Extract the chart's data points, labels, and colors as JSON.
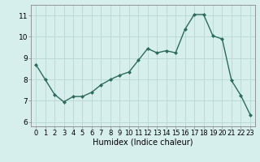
{
  "x": [
    0,
    1,
    2,
    3,
    4,
    5,
    6,
    7,
    8,
    9,
    10,
    11,
    12,
    13,
    14,
    15,
    16,
    17,
    18,
    19,
    20,
    21,
    22,
    23
  ],
  "y": [
    8.7,
    8.0,
    7.3,
    6.95,
    7.2,
    7.2,
    7.4,
    7.75,
    8.0,
    8.2,
    8.35,
    8.9,
    9.45,
    9.25,
    9.35,
    9.25,
    10.35,
    11.05,
    11.05,
    10.05,
    9.9,
    7.95,
    7.25,
    6.35
  ],
  "line_color": "#2d6b5e",
  "marker": "D",
  "marker_size": 2,
  "xlabel": "Humidex (Indice chaleur)",
  "xlim": [
    -0.5,
    23.5
  ],
  "ylim": [
    5.8,
    11.5
  ],
  "yticks": [
    6,
    7,
    8,
    9,
    10,
    11
  ],
  "xticks": [
    0,
    1,
    2,
    3,
    4,
    5,
    6,
    7,
    8,
    9,
    10,
    11,
    12,
    13,
    14,
    15,
    16,
    17,
    18,
    19,
    20,
    21,
    22,
    23
  ],
  "background_color": "#d6eeec",
  "grid_color": "#b8d8d4",
  "tick_fontsize": 6.0,
  "xlabel_fontsize": 7.0
}
